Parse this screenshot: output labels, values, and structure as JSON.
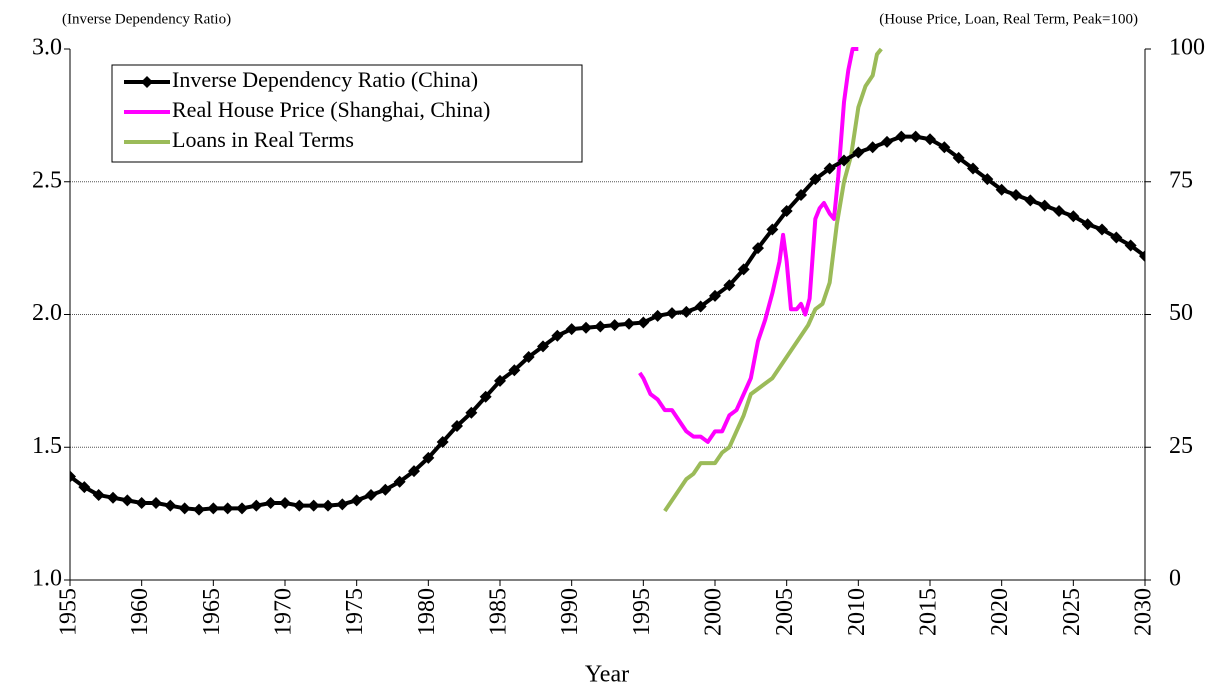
{
  "chart_data": {
    "type": "line",
    "ylabel": "(Inverse Dependency Ratio)",
    "y2label": "(House Price, Loan, Real Term, Peak=100)",
    "xlabel": "Year",
    "xlim": [
      1955,
      2030
    ],
    "xticks": [
      1955,
      1960,
      1965,
      1970,
      1975,
      1980,
      1985,
      1990,
      1995,
      2000,
      2005,
      2010,
      2015,
      2020,
      2025,
      2030
    ],
    "ylim": [
      1,
      3
    ],
    "yticks": [
      {
        "value": 1,
        "label": "1.0"
      },
      1.5,
      {
        "value": 2,
        "label": "2.0"
      },
      2.5,
      {
        "value": 3,
        "label": "3.0"
      }
    ],
    "y2lim": [
      0,
      100
    ],
    "y2ticks": [
      0,
      25,
      50,
      75,
      100
    ],
    "grid": true,
    "legend": "upper left",
    "series": [
      {
        "name": "Inverse Dependency Ratio (China)",
        "color": "#000000",
        "marker": "diamond",
        "x": [
          1955,
          1956,
          1957,
          1958,
          1959,
          1960,
          1961,
          1962,
          1963,
          1964,
          1965,
          1966,
          1967,
          1968,
          1969,
          1970,
          1971,
          1972,
          1973,
          1974,
          1975,
          1976,
          1977,
          1978,
          1979,
          1980,
          1981,
          1982,
          1983,
          1984,
          1985,
          1986,
          1987,
          1988,
          1989,
          1990,
          1991,
          1992,
          1993,
          1994,
          1995,
          1996,
          1997,
          1998,
          1999,
          2000,
          2001,
          2002,
          2003,
          2004,
          2005,
          2006,
          2007,
          2008,
          2009,
          2010,
          2011,
          2012,
          2013,
          2014,
          2015,
          2016,
          2017,
          2018,
          2019,
          2020,
          2021,
          2022,
          2023,
          2024,
          2025,
          2026,
          2027,
          2028,
          2029,
          2030
        ],
        "values": [
          1.39,
          1.35,
          1.32,
          1.31,
          1.3,
          1.29,
          1.29,
          1.28,
          1.27,
          1.265,
          1.27,
          1.27,
          1.27,
          1.28,
          1.29,
          1.29,
          1.28,
          1.28,
          1.28,
          1.285,
          1.3,
          1.32,
          1.34,
          1.37,
          1.41,
          1.46,
          1.52,
          1.58,
          1.63,
          1.69,
          1.75,
          1.79,
          1.84,
          1.88,
          1.92,
          1.945,
          1.95,
          1.955,
          1.96,
          1.965,
          1.97,
          1.995,
          2.005,
          2.01,
          2.03,
          2.07,
          2.11,
          2.17,
          2.25,
          2.32,
          2.39,
          2.45,
          2.51,
          2.55,
          2.58,
          2.61,
          2.63,
          2.65,
          2.67,
          2.67,
          2.66,
          2.63,
          2.59,
          2.55,
          2.51,
          2.47,
          2.45,
          2.43,
          2.41,
          2.39,
          2.37,
          2.34,
          2.32,
          2.29,
          2.26,
          2.22
        ]
      },
      {
        "name": "Real House Price (Shanghai, China)",
        "color": "#ff00ff",
        "axis": "y2",
        "x": [
          1994.75,
          1995,
          1995.5,
          1996,
          1996.5,
          1997,
          1997.5,
          1998,
          1998.5,
          1999,
          1999.5,
          2000,
          2000.5,
          2001,
          2001.5,
          2002,
          2002.5,
          2003,
          2003.5,
          2004,
          2004.5,
          2004.75,
          2005,
          2005.3,
          2005.7,
          2006,
          2006.3,
          2006.6,
          2007,
          2007.3,
          2007.6,
          2008,
          2008.3,
          2008.6,
          2009,
          2009.3,
          2009.6,
          2010
        ],
        "values": [
          39,
          38,
          35,
          34,
          32,
          32,
          30,
          28,
          27,
          27,
          26,
          28,
          28,
          31,
          32,
          35,
          38,
          45,
          49,
          54,
          60,
          65,
          60,
          51,
          51,
          52,
          50,
          53,
          68,
          70,
          71,
          69,
          68,
          76,
          90,
          96,
          100,
          100
        ]
      },
      {
        "name": "Loans in Real Terms",
        "color": "#9bbb59",
        "axis": "y2",
        "x": [
          1996.5,
          1997,
          1997.5,
          1998,
          1998.5,
          1999,
          1999.5,
          2000,
          2000.5,
          2001,
          2001.5,
          2002,
          2002.5,
          2003,
          2003.5,
          2004,
          2004.5,
          2005,
          2005.5,
          2006,
          2006.5,
          2007,
          2007.5,
          2008,
          2008.5,
          2009,
          2009.5,
          2010,
          2010.5,
          2011,
          2011.3,
          2011.6
        ],
        "values": [
          13,
          15,
          17,
          19,
          20,
          22,
          22,
          22,
          24,
          25,
          28,
          31,
          35,
          36,
          37,
          38,
          40,
          42,
          44,
          46,
          48,
          51,
          52,
          56,
          67,
          75,
          80,
          89,
          93,
          95,
          99,
          100
        ]
      }
    ]
  }
}
